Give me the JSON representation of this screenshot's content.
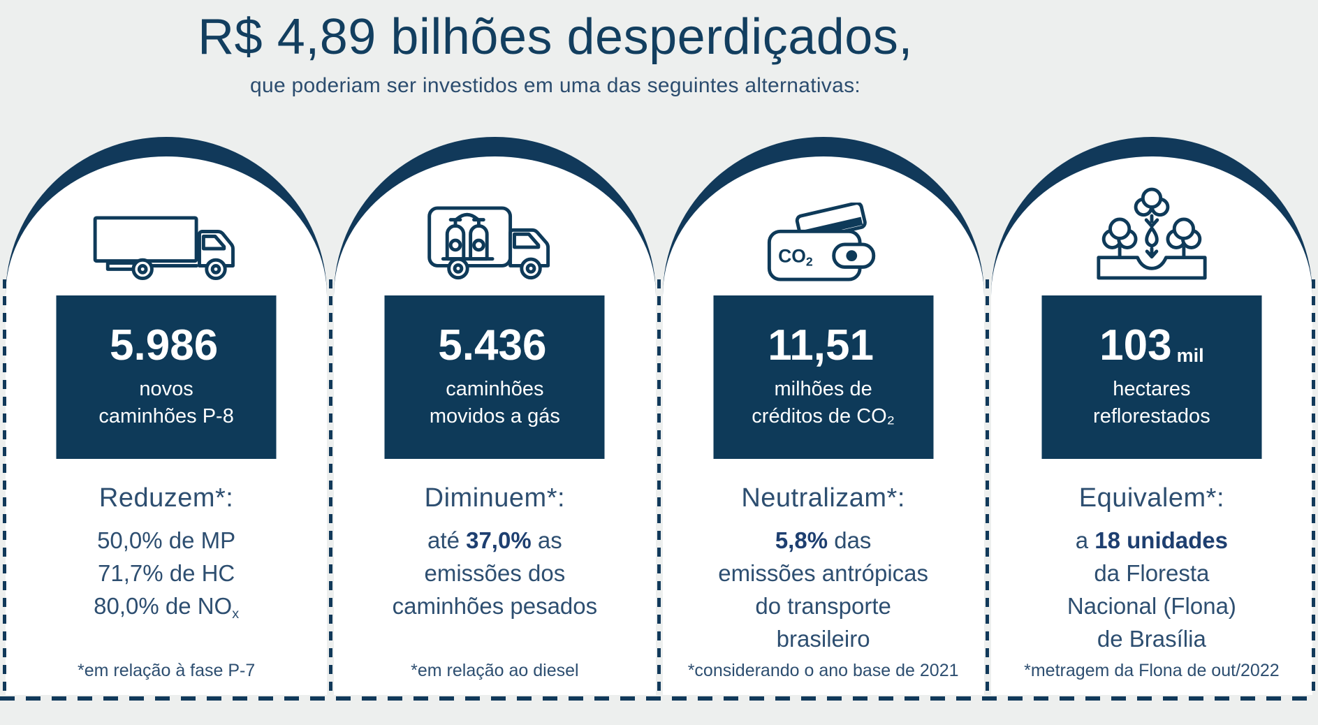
{
  "header": {
    "title": "R$ 4,89 bilhões desperdiçados,",
    "subtitle": "que poderiam ser investidos em uma das seguintes alternativas:"
  },
  "colors": {
    "navy": "#11395a",
    "box_navy": "#0e3a59",
    "title": "#123e5f",
    "subtitle": "#2b4c6e",
    "text": "#2d4e70",
    "bold": "#1e3f70",
    "bg": "#edefee",
    "card_bg": "#ffffff",
    "on_navy": "#ffffff"
  },
  "cards": [
    {
      "icon": "box-truck-icon",
      "value": "5.986",
      "value_suffix": "",
      "label_lines": [
        "novos",
        "caminhões P-8"
      ],
      "heading": "Reduzem*:",
      "body_lines": [
        [
          {
            "t": "50,0% de MP"
          }
        ],
        [
          {
            "t": "71,7% de HC"
          }
        ],
        [
          {
            "t": "80,0% de NO"
          },
          {
            "t": "x",
            "sub": true
          }
        ]
      ],
      "footnote": "*em relação à fase P-7"
    },
    {
      "icon": "gas-truck-icon",
      "value": "5.436",
      "value_suffix": "",
      "label_lines": [
        "caminhões",
        "movidos a gás"
      ],
      "heading": "Diminuem*:",
      "body_lines": [
        [
          {
            "t": "até "
          },
          {
            "t": "37,0%",
            "b": true
          },
          {
            "t": " as"
          }
        ],
        [
          {
            "t": "emissões dos"
          }
        ],
        [
          {
            "t": "caminhões pesados"
          }
        ]
      ],
      "footnote": "*em relação ao diesel"
    },
    {
      "icon": "co2-wallet-icon",
      "icon_label": {
        "main": "CO",
        "sub": "2"
      },
      "value": "11,51",
      "value_suffix": "",
      "label_lines": [
        "milhões de",
        "créditos de CO₂"
      ],
      "heading": "Neutralizam*:",
      "body_lines": [
        [
          {
            "t": "5,8%",
            "b": true
          },
          {
            "t": " das"
          }
        ],
        [
          {
            "t": "emissões antrópicas"
          }
        ],
        [
          {
            "t": "do transporte"
          }
        ],
        [
          {
            "t": "brasileiro"
          }
        ]
      ],
      "footnote": "*considerando o ano base de 2021"
    },
    {
      "icon": "reforestation-icon",
      "value": "103",
      "value_suffix": "mil",
      "label_lines": [
        "hectares",
        "reflorestados"
      ],
      "heading": "Equivalem*:",
      "body_lines": [
        [
          {
            "t": "a "
          },
          {
            "t": "18 unidades",
            "b": true
          }
        ],
        [
          {
            "t": "da Floresta"
          }
        ],
        [
          {
            "t": "Nacional (Flona)"
          }
        ],
        [
          {
            "t": "de Brasília"
          }
        ]
      ],
      "footnote": "*metragem da Flona de out/2022"
    }
  ]
}
